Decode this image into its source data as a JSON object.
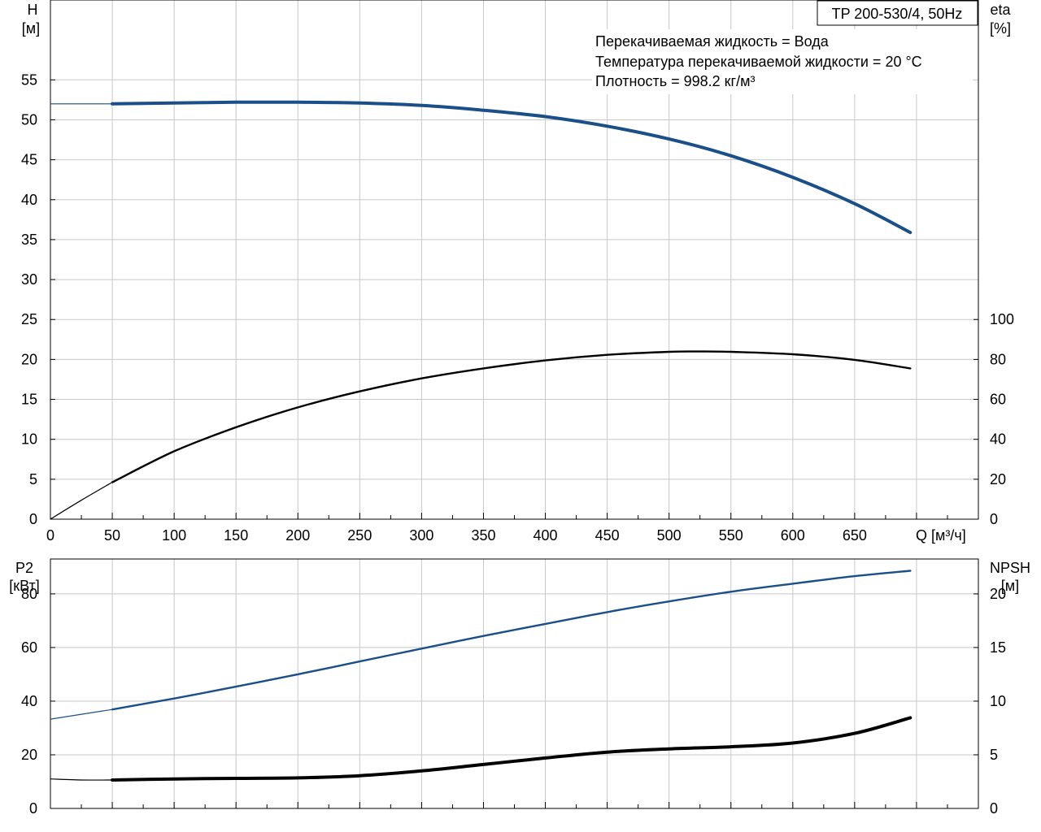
{
  "chart_data": [
    {
      "type": "line",
      "title": "TP 200-530/4, 50Hz",
      "info_lines": [
        "Перекачиваемая жидкость = Вода",
        "Температура перекачиваемой жидкости = 20 °C",
        "Плотность = 998.2 кг/м³"
      ],
      "xlabel": "Q [м³/ч]",
      "xlim": [
        0,
        750
      ],
      "x_ticks": [
        0,
        50,
        100,
        150,
        200,
        250,
        300,
        350,
        400,
        450,
        500,
        550,
        600,
        650
      ],
      "ylabel_left": {
        "name": "H",
        "unit": "[м]"
      },
      "ylim_left": [
        0,
        65
      ],
      "y_ticks_left": [
        0,
        5,
        10,
        15,
        20,
        25,
        30,
        35,
        40,
        45,
        50,
        55
      ],
      "ylabel_right": {
        "name": "eta",
        "unit": "[%]"
      },
      "ylim_right": [
        0,
        260
      ],
      "y_ticks_right": [
        0,
        20,
        40,
        60,
        80,
        100
      ],
      "grid": true,
      "series": [
        {
          "axis": "left",
          "color": "#1a4f8a",
          "x": [
            50,
            100,
            150,
            200,
            250,
            300,
            350,
            400,
            450,
            500,
            550,
            600,
            650,
            695
          ],
          "values": [
            52.0,
            52.1,
            52.2,
            52.2,
            52.1,
            51.8,
            51.2,
            50.4,
            49.2,
            47.6,
            45.5,
            42.8,
            39.5,
            35.9
          ],
          "extension": {
            "x": [
              0,
              50
            ],
            "values": [
              52.0,
              52.0
            ]
          }
        },
        {
          "axis": "right",
          "color": "#000000",
          "x": [
            50,
            100,
            150,
            200,
            250,
            300,
            350,
            400,
            450,
            500,
            525,
            550,
            600,
            650,
            695
          ],
          "values": [
            18.5,
            34,
            46,
            56,
            64,
            70.5,
            75.5,
            79.5,
            82.3,
            83.8,
            84,
            83.8,
            82.6,
            79.8,
            75.5
          ],
          "extension": {
            "x": [
              0,
              25,
              50
            ],
            "values": [
              0,
              9.5,
              18.5
            ]
          }
        }
      ]
    },
    {
      "type": "line",
      "xlim": [
        0,
        750
      ],
      "ylabel_left": {
        "name": "P2",
        "unit": "[кВт]"
      },
      "ylim_left": [
        0,
        93
      ],
      "y_ticks_left": [
        0,
        20,
        40,
        60,
        80
      ],
      "ylabel_right": {
        "name": "NPSH",
        "unit": "[м]"
      },
      "ylim_right": [
        0,
        23.25
      ],
      "y_ticks_right": [
        0,
        5,
        10,
        15,
        20
      ],
      "grid": true,
      "series": [
        {
          "axis": "left",
          "color": "#1a4f8a",
          "x": [
            50,
            100,
            150,
            200,
            250,
            300,
            350,
            400,
            450,
            500,
            550,
            600,
            650,
            695
          ],
          "values": [
            36.9,
            41.0,
            45.4,
            50.0,
            54.8,
            59.6,
            64.3,
            68.8,
            73.2,
            77.2,
            80.8,
            83.8,
            86.6,
            88.6
          ],
          "extension": {
            "x": [
              0,
              50
            ],
            "values": [
              33.3,
              36.9
            ]
          }
        },
        {
          "axis": "right",
          "color": "#000000",
          "x": [
            50,
            100,
            150,
            200,
            250,
            300,
            350,
            400,
            450,
            500,
            550,
            600,
            650,
            695
          ],
          "values": [
            2.65,
            2.75,
            2.8,
            2.85,
            3.05,
            3.5,
            4.1,
            4.7,
            5.25,
            5.55,
            5.75,
            6.1,
            7.0,
            8.45
          ],
          "extension": {
            "x": [
              0,
              25,
              50
            ],
            "values": [
              2.75,
              2.65,
              2.65
            ]
          }
        }
      ]
    }
  ]
}
